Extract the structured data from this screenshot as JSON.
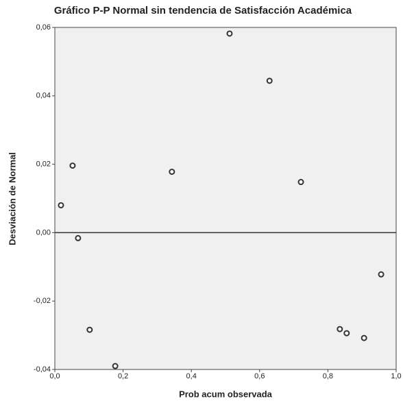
{
  "chart_data": {
    "type": "scatter",
    "title": "Gráfico P-P Normal sin tendencia de Satisfacción Académica",
    "x_label": "Prob acum observada",
    "y_label": "Desviación de Normal",
    "x": [
      0.018,
      0.052,
      0.068,
      0.102,
      0.177,
      0.343,
      0.512,
      0.629,
      0.721,
      0.835,
      0.855,
      0.906,
      0.956
    ],
    "values": [
      0.008,
      0.0196,
      -0.0016,
      -0.0284,
      -0.039,
      0.0178,
      0.0582,
      0.0444,
      0.0148,
      -0.0282,
      -0.0294,
      -0.0308,
      -0.0122
    ],
    "color": "#333333",
    "xlim": [
      0,
      1
    ],
    "ylim": [
      -0.04,
      0.06
    ],
    "xticks": [
      {
        "value": 0,
        "label": "0,0"
      },
      {
        "value": 0.2,
        "label": "0,2"
      },
      {
        "value": 0.4,
        "label": "0,4"
      },
      {
        "value": 0.6,
        "label": "0,6"
      },
      {
        "value": 0.8,
        "label": "0,8"
      },
      {
        "value": 1,
        "label": "1,0"
      }
    ],
    "yticks": [
      {
        "value": -0.04,
        "label": "-0,04"
      },
      {
        "value": -0.02,
        "label": "-0,02"
      },
      {
        "value": 0,
        "label": "0,00"
      },
      {
        "value": 0.02,
        "label": "0,02"
      },
      {
        "value": 0.04,
        "label": "0,04"
      },
      {
        "value": 0.06,
        "label": "0,06"
      }
    ],
    "reference_line": 0
  }
}
